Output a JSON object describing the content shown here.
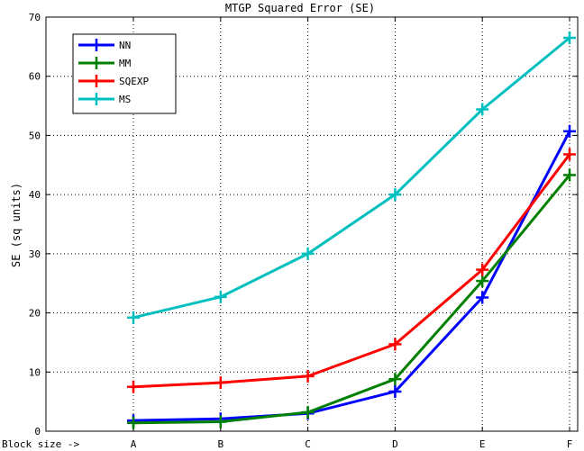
{
  "chart_data": {
    "type": "line",
    "title": "MTGP Squared Error (SE)",
    "ylabel": "SE (sq units)",
    "xlabel": "",
    "x_prefix_label": "Block size ->",
    "categories": [
      "A",
      "B",
      "C",
      "D",
      "E",
      "F"
    ],
    "ylim": [
      0,
      70
    ],
    "yticks": [
      0,
      10,
      20,
      30,
      40,
      50,
      60,
      70
    ],
    "grid": true,
    "legend_position": "top-left",
    "series": [
      {
        "name": "NN",
        "color": "#0000ff",
        "values": [
          1.8,
          2.1,
          3.0,
          6.7,
          22.6,
          50.7
        ]
      },
      {
        "name": "MM",
        "color": "#008000",
        "values": [
          1.4,
          1.6,
          3.2,
          8.8,
          25.4,
          43.3
        ]
      },
      {
        "name": "SQEXP",
        "color": "#ff0000",
        "values": [
          7.5,
          8.2,
          9.3,
          14.7,
          27.3,
          46.8
        ]
      },
      {
        "name": "MS",
        "color": "#00bfbf",
        "values": [
          19.2,
          22.7,
          30.0,
          40.0,
          54.4,
          66.5
        ]
      }
    ]
  }
}
